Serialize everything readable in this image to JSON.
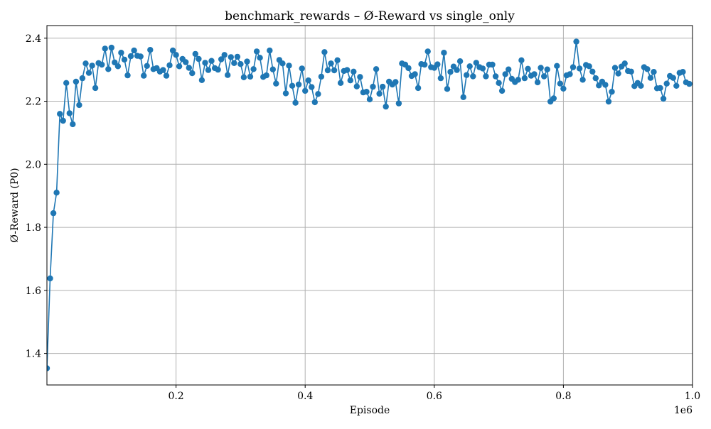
{
  "chart_data": {
    "type": "line",
    "title": "benchmark_rewards – Ø-Reward vs single_only",
    "xlabel": "Episode",
    "ylabel": "Ø-Reward (P0)",
    "x_scale_label": "1e6",
    "xlim": [
      0,
      1000000
    ],
    "ylim": [
      1.3,
      2.44
    ],
    "xticks": [
      0.2,
      0.4,
      0.6,
      0.8,
      1.0
    ],
    "xtick_labels": [
      "0.2",
      "0.4",
      "0.6",
      "0.8",
      "1.0"
    ],
    "yticks": [
      1.4,
      1.6,
      1.8,
      2.0,
      2.2,
      2.4
    ],
    "ytick_labels": [
      "1.4",
      "1.6",
      "1.8",
      "2.0",
      "2.2",
      "2.4"
    ],
    "grid": true,
    "color": "#1f77b4",
    "marker": "circle",
    "series": [
      {
        "x_start": 0,
        "x_step": 5000,
        "values": [
          1.353,
          1.638,
          1.845,
          1.91,
          2.16,
          2.138,
          2.258,
          2.162,
          2.127,
          2.262,
          2.188,
          2.273,
          2.32,
          2.29,
          2.313,
          2.242,
          2.321,
          2.316,
          2.367,
          2.302,
          2.37,
          2.323,
          2.311,
          2.354,
          2.332,
          2.282,
          2.343,
          2.361,
          2.344,
          2.342,
          2.281,
          2.312,
          2.363,
          2.302,
          2.305,
          2.294,
          2.299,
          2.281,
          2.314,
          2.361,
          2.347,
          2.311,
          2.334,
          2.324,
          2.306,
          2.289,
          2.35,
          2.334,
          2.267,
          2.322,
          2.299,
          2.328,
          2.305,
          2.3,
          2.333,
          2.347,
          2.283,
          2.34,
          2.321,
          2.341,
          2.318,
          2.276,
          2.326,
          2.278,
          2.302,
          2.358,
          2.338,
          2.277,
          2.282,
          2.361,
          2.301,
          2.256,
          2.331,
          2.32,
          2.225,
          2.313,
          2.249,
          2.195,
          2.253,
          2.304,
          2.233,
          2.266,
          2.245,
          2.197,
          2.223,
          2.278,
          2.356,
          2.298,
          2.32,
          2.298,
          2.33,
          2.258,
          2.296,
          2.299,
          2.266,
          2.294,
          2.247,
          2.277,
          2.228,
          2.23,
          2.206,
          2.246,
          2.302,
          2.224,
          2.246,
          2.183,
          2.262,
          2.253,
          2.261,
          2.193,
          2.32,
          2.316,
          2.305,
          2.28,
          2.286,
          2.242,
          2.318,
          2.316,
          2.358,
          2.308,
          2.306,
          2.317,
          2.273,
          2.354,
          2.239,
          2.293,
          2.31,
          2.299,
          2.327,
          2.213,
          2.283,
          2.311,
          2.279,
          2.322,
          2.308,
          2.304,
          2.279,
          2.316,
          2.316,
          2.279,
          2.258,
          2.233,
          2.286,
          2.301,
          2.271,
          2.261,
          2.268,
          2.33,
          2.273,
          2.303,
          2.281,
          2.286,
          2.26,
          2.306,
          2.279,
          2.301,
          2.199,
          2.209,
          2.312,
          2.256,
          2.24,
          2.282,
          2.286,
          2.308,
          2.389,
          2.304,
          2.268,
          2.315,
          2.311,
          2.294,
          2.273,
          2.25,
          2.262,
          2.252,
          2.199,
          2.23,
          2.306,
          2.288,
          2.31,
          2.32,
          2.296,
          2.294,
          2.248,
          2.258,
          2.249,
          2.308,
          2.302,
          2.274,
          2.293,
          2.241,
          2.242,
          2.208,
          2.256,
          2.28,
          2.274,
          2.249,
          2.29,
          2.293,
          2.26,
          2.255
        ]
      }
    ]
  }
}
